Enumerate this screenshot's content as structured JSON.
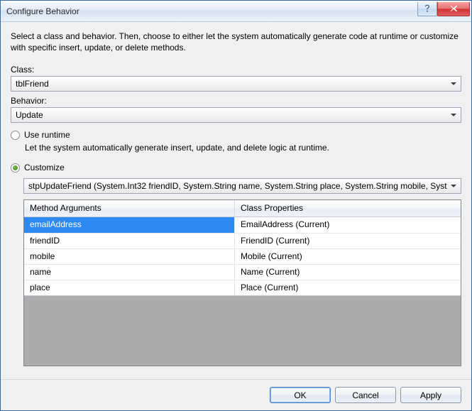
{
  "window": {
    "title": "Configure Behavior"
  },
  "instruction": "Select a class and behavior.  Then, choose to either let the system automatically generate code at runtime or customize with specific insert, update, or delete methods.",
  "class_section": {
    "label": "Class:",
    "value": "tblFriend"
  },
  "behavior_section": {
    "label": "Behavior:",
    "value": "Update"
  },
  "runtime_option": {
    "label": "Use runtime",
    "description": "Let the system automatically generate insert, update, and delete logic at runtime.",
    "checked": false
  },
  "customize_option": {
    "label": "Customize",
    "checked": true,
    "method": "stpUpdateFriend (System.Int32 friendID, System.String name, System.String place, System.String mobile, Syst"
  },
  "grid": {
    "columns": {
      "arguments": "Method Arguments",
      "properties": "Class Properties"
    },
    "rows": [
      {
        "arg": "emailAddress",
        "prop": "EmailAddress (Current)",
        "selected": true
      },
      {
        "arg": "friendID",
        "prop": "FriendID (Current)",
        "selected": false
      },
      {
        "arg": "mobile",
        "prop": "Mobile (Current)",
        "selected": false
      },
      {
        "arg": "name",
        "prop": "Name (Current)",
        "selected": false
      },
      {
        "arg": "place",
        "prop": "Place (Current)",
        "selected": false
      }
    ]
  },
  "buttons": {
    "ok": "OK",
    "cancel": "Cancel",
    "apply": "Apply"
  },
  "colors": {
    "selection": "#2d89ef",
    "window_bg": "#f0f0f0",
    "grid_fill": "#acacac",
    "close_red": "#d32f2f"
  }
}
